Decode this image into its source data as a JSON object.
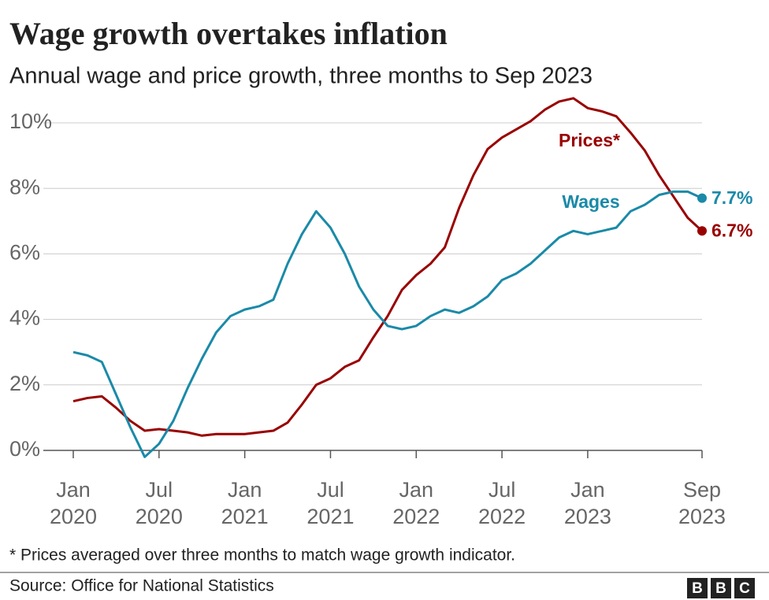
{
  "chart_data": {
    "type": "line",
    "title": "Wage growth overtakes inflation",
    "subtitle": "Annual wage and price growth, three months to Sep 2023",
    "categories": [
      "Jan 2020",
      null,
      null,
      null,
      null,
      null,
      "Jul 2020",
      null,
      null,
      null,
      null,
      null,
      "Jan 2021",
      null,
      null,
      null,
      null,
      null,
      "Jul 2021",
      null,
      null,
      null,
      null,
      null,
      "Jan 2022",
      null,
      null,
      null,
      null,
      null,
      "Jul 2022",
      null,
      null,
      null,
      null,
      null,
      "Jan 2023",
      null,
      null,
      null,
      null,
      null,
      null,
      null,
      "Sep 2023"
    ],
    "series": [
      {
        "name": "Prices*",
        "color": "#990000",
        "values": [
          1.5,
          1.6,
          1.65,
          1.3,
          0.9,
          0.6,
          0.65,
          0.6,
          0.55,
          0.45,
          0.5,
          0.5,
          0.5,
          0.55,
          0.6,
          0.85,
          1.4,
          2.0,
          2.2,
          2.55,
          2.75,
          3.45,
          4.1,
          4.9,
          5.35,
          5.7,
          6.2,
          7.4,
          8.4,
          9.2,
          9.55,
          9.8,
          10.05,
          10.4,
          10.65,
          10.75,
          10.45,
          10.35,
          10.2,
          9.7,
          9.15,
          8.4,
          7.75,
          7.1,
          6.7
        ],
        "value_labels": [
          null,
          null,
          null,
          null,
          null,
          null,
          null,
          null,
          null,
          null,
          null,
          null,
          null,
          null,
          null,
          null,
          null,
          null,
          null,
          null,
          null,
          null,
          null,
          null,
          null,
          null,
          null,
          null,
          null,
          null,
          null,
          null,
          null,
          null,
          null,
          null,
          null,
          null,
          null,
          null,
          null,
          null,
          null,
          null,
          "6.7%"
        ]
      },
      {
        "name": "Wages",
        "color": "#1a8aa8",
        "values": [
          3.0,
          2.9,
          2.7,
          1.7,
          0.7,
          -0.2,
          0.2,
          0.9,
          1.9,
          2.8,
          3.6,
          4.1,
          4.3,
          4.4,
          4.6,
          5.7,
          6.6,
          7.3,
          6.8,
          6.0,
          5.0,
          4.3,
          3.8,
          3.7,
          3.8,
          4.1,
          4.3,
          4.2,
          4.4,
          4.7,
          5.2,
          5.4,
          5.7,
          6.1,
          6.5,
          6.7,
          6.6,
          6.7,
          6.8,
          7.3,
          7.5,
          7.8,
          7.9,
          7.9,
          7.7
        ],
        "value_labels": [
          null,
          null,
          null,
          null,
          null,
          null,
          null,
          null,
          null,
          null,
          null,
          null,
          null,
          null,
          null,
          null,
          null,
          null,
          null,
          null,
          null,
          null,
          null,
          null,
          null,
          null,
          null,
          null,
          null,
          null,
          null,
          null,
          null,
          null,
          null,
          null,
          null,
          null,
          null,
          null,
          null,
          null,
          null,
          null,
          "7.7%"
        ]
      }
    ],
    "ylim": [
      0,
      10
    ],
    "yticks": [
      {
        "value": 0,
        "label": "0%"
      },
      {
        "value": 2,
        "label": "2%"
      },
      {
        "value": 4,
        "label": "4%"
      },
      {
        "value": 6,
        "label": "6%"
      },
      {
        "value": 8,
        "label": "8%"
      },
      {
        "value": 10,
        "label": "10%"
      }
    ],
    "grid": true,
    "footnote": "* Prices averaged over three months to match wage growth indicator.",
    "source": "Source: Office for National Statistics",
    "logo": [
      "B",
      "B",
      "C"
    ]
  }
}
